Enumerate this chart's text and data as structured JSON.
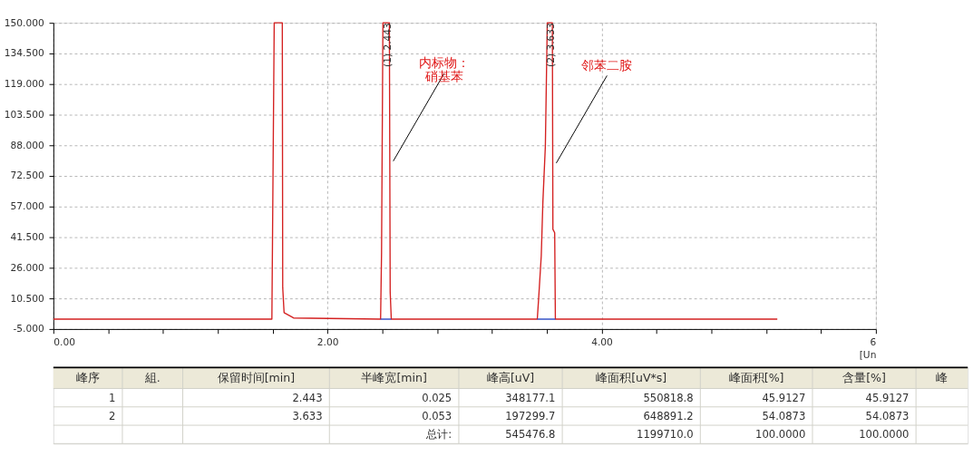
{
  "chart_data": [
    {
      "type": "line",
      "xlabel": "[Un",
      "xlim": [
        0,
        6
      ],
      "xticks": [
        {
          "value": 0,
          "label": "0.00"
        },
        {
          "value": 0.4,
          "label": null
        },
        {
          "value": 0.8,
          "label": null
        },
        {
          "value": 1.2,
          "label": null
        },
        {
          "value": 1.6,
          "label": null
        },
        {
          "value": 2,
          "label": "2.00"
        },
        {
          "value": 2.4,
          "label": null
        },
        {
          "value": 2.8,
          "label": null
        },
        {
          "value": 3.2,
          "label": null
        },
        {
          "value": 3.6,
          "label": null
        },
        {
          "value": 4,
          "label": "4.00"
        },
        {
          "value": 4.4,
          "label": null
        },
        {
          "value": 4.8,
          "label": null
        },
        {
          "value": 5.2,
          "label": null
        },
        {
          "value": 5.6,
          "label": null
        },
        6
      ],
      "ylim": [
        -5,
        150
      ],
      "yticks": [
        {
          "value": -5,
          "label": "-5.000"
        },
        {
          "value": 10.5,
          "label": "10.500"
        },
        {
          "value": 26,
          "label": "26.000"
        },
        {
          "value": 41.5,
          "label": "41.500"
        },
        {
          "value": 57,
          "label": "57.000"
        },
        {
          "value": 72.5,
          "label": "72.500"
        },
        {
          "value": 88,
          "label": "88.000"
        },
        {
          "value": 103.5,
          "label": "103.500"
        },
        {
          "value": 119,
          "label": "119.000"
        },
        {
          "value": 134.5,
          "label": "134.500"
        },
        {
          "value": 150,
          "label": "150.000"
        }
      ],
      "grid": true,
      "series": [
        {
          "color": "#d42020",
          "x": [
            0,
            1.594,
            1.611,
            1.67,
            1.673,
            1.683,
            1.752,
            2.387,
            2.394,
            2.404,
            2.443,
            2.451,
            2.457,
            2.465,
            3.53,
            3.54,
            3.559,
            3.571,
            3.589,
            3.603,
            3.633,
            3.64,
            3.644,
            3.657,
            3.662,
            5.281
          ],
          "values": [
            0,
            0,
            150,
            150,
            16,
            3.3,
            0.6,
            0,
            33.7,
            150,
            150,
            150,
            13.7,
            0,
            0,
            10.5,
            32,
            59.5,
            87.7,
            150,
            150,
            150,
            45.5,
            43.7,
            0,
            0
          ],
          "value_labels": [
            null,
            null,
            null,
            null,
            null,
            null,
            null,
            null,
            null,
            null,
            "(1) 2.443",
            null,
            null,
            null,
            null,
            null,
            null,
            null,
            null,
            null,
            "(2) 3.633",
            null,
            null,
            null,
            null,
            null
          ]
        },
        {
          "color": "#2040c0",
          "x": [
            2.387,
            2.465
          ],
          "values": [
            0,
            0
          ]
        },
        {
          "color": "#2040c0",
          "x": [
            3.53,
            3.662
          ],
          "values": [
            0,
            0
          ]
        }
      ],
      "annotations": [
        {
          "text": "内标物：硝基苯",
          "x": 2.454,
          "y": 80
        },
        {
          "text": "邻苯二胺",
          "x": 3.643,
          "y": 79
        }
      ]
    },
    {
      "type": "other",
      "categories": [
        "峰序",
        "組.",
        "保留时间[min]",
        "半峰宽[min]",
        "峰高[uV]",
        "峰面积[uV*s]",
        "峰面积[%]",
        "含量[%]",
        "峰"
      ],
      "cell_labels": [
        [
          "1",
          null,
          "2.443",
          "0.025",
          "348177.1",
          "550818.8",
          "45.9127",
          "45.9127",
          null
        ],
        [
          "2",
          null,
          "3.633",
          "0.053",
          "197299.7",
          "648891.2",
          "54.0873",
          "54.0873",
          null
        ],
        [
          null,
          null,
          null,
          "总计:",
          "545476.8",
          "1199710.0",
          "100.0000",
          "100.0000",
          null
        ]
      ]
    }
  ]
}
